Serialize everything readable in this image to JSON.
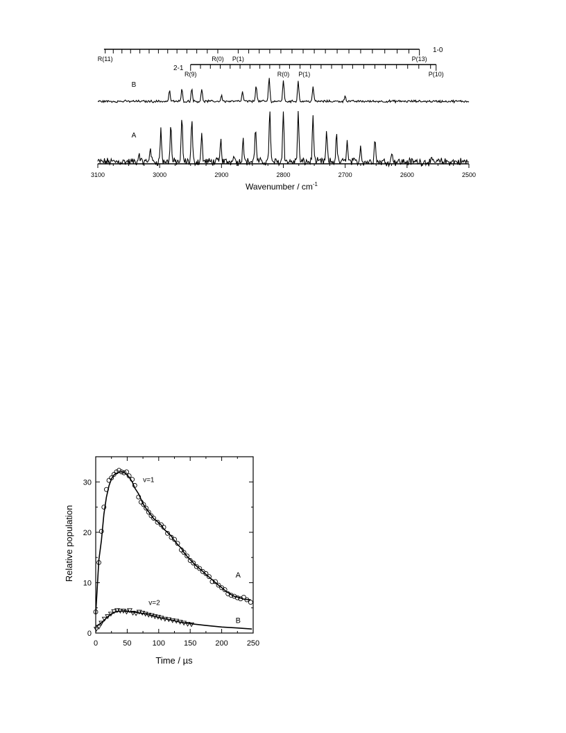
{
  "chart_data": [
    {
      "type": "line",
      "xlabel": "Wavenumber / cm",
      "xlabel_sup": "-1",
      "ylabel": "",
      "xlim": [
        3100,
        2500
      ],
      "x_ticks": [
        3100,
        3000,
        2900,
        2800,
        2700,
        2600,
        2500
      ],
      "grid": false,
      "series": [
        {
          "name": "A",
          "baseline": 0,
          "noise": 0.06,
          "peaks": [
            {
              "x": 3015,
              "h": 0.3
            },
            {
              "x": 2998,
              "h": 0.62
            },
            {
              "x": 2982,
              "h": 0.72
            },
            {
              "x": 2964,
              "h": 0.82
            },
            {
              "x": 2948,
              "h": 0.78
            },
            {
              "x": 2932,
              "h": 0.52
            },
            {
              "x": 2901,
              "h": 0.4
            },
            {
              "x": 2865,
              "h": 0.48
            },
            {
              "x": 2845,
              "h": 0.68
            },
            {
              "x": 2822,
              "h": 1.0
            },
            {
              "x": 2800,
              "h": 0.98
            },
            {
              "x": 2776,
              "h": 0.96
            },
            {
              "x": 2752,
              "h": 0.88
            },
            {
              "x": 2730,
              "h": 0.56
            },
            {
              "x": 2714,
              "h": 0.52
            },
            {
              "x": 2697,
              "h": 0.4
            },
            {
              "x": 2675,
              "h": 0.32
            },
            {
              "x": 2652,
              "h": 0.48
            },
            {
              "x": 2624,
              "h": 0.18
            },
            {
              "x": 2880,
              "h": 0.18
            },
            {
              "x": 3033,
              "h": 0.18
            }
          ]
        },
        {
          "name": "B",
          "baseline": 0,
          "noise": 0.04,
          "peaks": [
            {
              "x": 2984,
              "h": 0.45
            },
            {
              "x": 2964,
              "h": 0.5
            },
            {
              "x": 2948,
              "h": 0.55
            },
            {
              "x": 2932,
              "h": 0.5
            },
            {
              "x": 2900,
              "h": 0.25
            },
            {
              "x": 2866,
              "h": 0.4
            },
            {
              "x": 2844,
              "h": 0.7
            },
            {
              "x": 2823,
              "h": 1.0
            },
            {
              "x": 2800,
              "h": 0.9
            },
            {
              "x": 2776,
              "h": 0.85
            },
            {
              "x": 2752,
              "h": 0.6
            },
            {
              "x": 2700,
              "h": 0.25
            }
          ]
        }
      ],
      "annotations": [
        {
          "label": "1-0",
          "start": 3090,
          "end": 2580,
          "ticks": [
            3088,
            3075,
            3061,
            3047,
            3032,
            3017,
            3002,
            2987,
            2972,
            2956,
            2940,
            2923,
            2906,
            2873,
            2856,
            2839,
            2822,
            2804,
            2786,
            2768,
            2750,
            2732,
            2713,
            2694,
            2675,
            2656,
            2636,
            2616,
            2597,
            2580
          ],
          "labels": [
            {
              "text": "R(11)",
              "x": 3088
            },
            {
              "text": "R(0)",
              "x": 2906
            },
            {
              "text": "P(1)",
              "x": 2873
            },
            {
              "text": "P(13)",
              "x": 2580
            }
          ]
        },
        {
          "label": "2-1",
          "start": 2950,
          "end": 2553,
          "ticks": [
            2950,
            2934,
            2918,
            2902,
            2886,
            2870,
            2854,
            2838,
            2822,
            2806,
            2790,
            2773,
            2756,
            2739,
            2722,
            2705,
            2688,
            2670,
            2652,
            2635,
            2617,
            2599,
            2581,
            2562,
            2553
          ],
          "labels": [
            {
              "text": "R(9)",
              "x": 2950
            },
            {
              "text": "R(0)",
              "x": 2800
            },
            {
              "text": "P(1)",
              "x": 2766
            },
            {
              "text": "P(10)",
              "x": 2553
            }
          ]
        }
      ]
    },
    {
      "type": "scatter",
      "xlabel": "Time / µs",
      "ylabel": "Relative population",
      "xlim": [
        0,
        250
      ],
      "ylim": [
        0,
        35
      ],
      "x_ticks": [
        0,
        50,
        100,
        150,
        200,
        250
      ],
      "y_ticks": [
        0,
        10,
        20,
        30
      ],
      "grid": false,
      "series": [
        {
          "name": "v=1",
          "marker": "circle",
          "points": [
            [
              0,
              4.2
            ],
            [
              5,
              14.0
            ],
            [
              9,
              20.2
            ],
            [
              13,
              25.0
            ],
            [
              17,
              28.5
            ],
            [
              21,
              30.3
            ],
            [
              25,
              30.8
            ],
            [
              29,
              31.5
            ],
            [
              33,
              32.0
            ],
            [
              37,
              32.3
            ],
            [
              41,
              32.0
            ],
            [
              45,
              31.8
            ],
            [
              49,
              32.0
            ],
            [
              53,
              31.2
            ],
            [
              58,
              30.5
            ],
            [
              62,
              29.3
            ],
            [
              68,
              27.0
            ],
            [
              72,
              26.0
            ],
            [
              76,
              25.5
            ],
            [
              80,
              24.8
            ],
            [
              84,
              24.0
            ],
            [
              88,
              23.3
            ],
            [
              92,
              22.8
            ],
            [
              98,
              22.0
            ],
            [
              104,
              21.5
            ],
            [
              108,
              21.0
            ],
            [
              114,
              19.8
            ],
            [
              120,
              19.0
            ],
            [
              125,
              18.6
            ],
            [
              130,
              17.8
            ],
            [
              136,
              16.5
            ],
            [
              140,
              16.0
            ],
            [
              145,
              15.3
            ],
            [
              150,
              14.4
            ],
            [
              155,
              13.9
            ],
            [
              160,
              13.2
            ],
            [
              165,
              12.8
            ],
            [
              170,
              12.2
            ],
            [
              175,
              11.8
            ],
            [
              180,
              11.2
            ],
            [
              185,
              10.2
            ],
            [
              190,
              10.2
            ],
            [
              195,
              9.5
            ],
            [
              200,
              9.0
            ],
            [
              205,
              8.6
            ],
            [
              210,
              7.8
            ],
            [
              215,
              7.5
            ],
            [
              220,
              7.3
            ],
            [
              225,
              7.0
            ],
            [
              230,
              6.8
            ],
            [
              235,
              7.1
            ],
            [
              240,
              6.6
            ],
            [
              246,
              6.1
            ]
          ],
          "fit_label": "A"
        },
        {
          "name": "v=2",
          "marker": "triangle-down",
          "points": [
            [
              1,
              0.8
            ],
            [
              5,
              1.2
            ],
            [
              9,
              2.0
            ],
            [
              14,
              2.8
            ],
            [
              19,
              3.3
            ],
            [
              24,
              3.8
            ],
            [
              29,
              4.3
            ],
            [
              34,
              4.5
            ],
            [
              39,
              4.4
            ],
            [
              44,
              4.4
            ],
            [
              49,
              4.2
            ],
            [
              54,
              4.5
            ],
            [
              59,
              4.0
            ],
            [
              64,
              3.9
            ],
            [
              69,
              4.2
            ],
            [
              74,
              4.0
            ],
            [
              79,
              3.8
            ],
            [
              84,
              3.6
            ],
            [
              89,
              3.5
            ],
            [
              94,
              3.3
            ],
            [
              99,
              3.2
            ],
            [
              104,
              3.0
            ],
            [
              110,
              2.8
            ],
            [
              116,
              2.7
            ],
            [
              122,
              2.5
            ],
            [
              128,
              2.4
            ],
            [
              134,
              2.2
            ],
            [
              140,
              2.0
            ],
            [
              146,
              1.8
            ],
            [
              152,
              1.7
            ]
          ],
          "fit_label": "B"
        }
      ]
    }
  ]
}
